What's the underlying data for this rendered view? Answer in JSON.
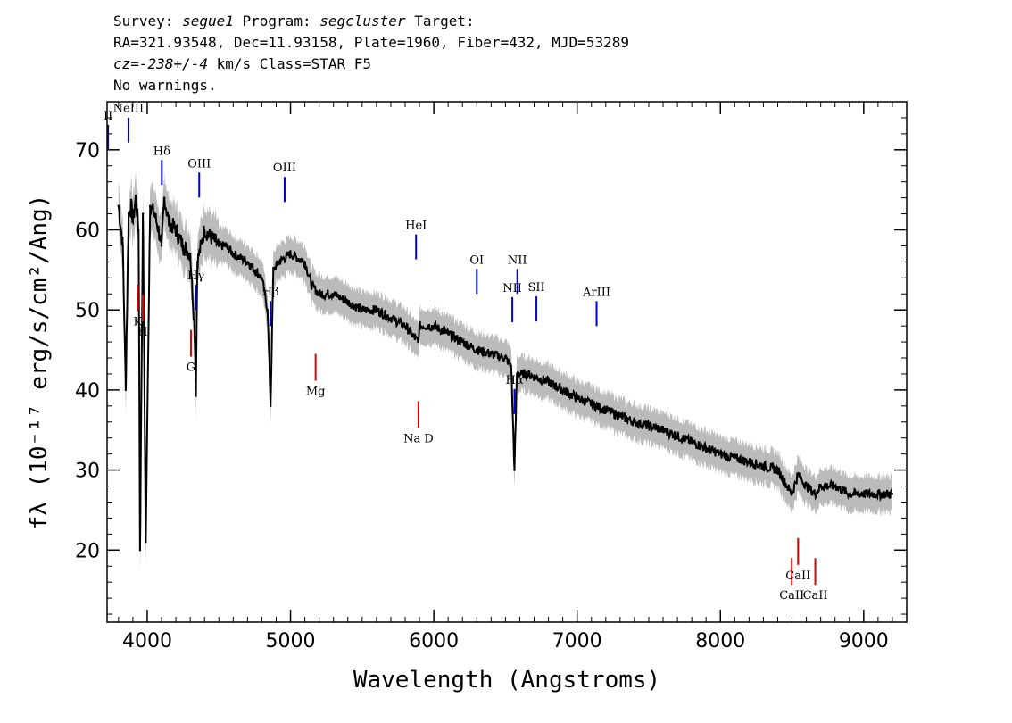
{
  "header": {
    "survey_label": "Survey:",
    "survey": "segue1",
    "program_label": "Program:",
    "program": "segcluster",
    "target_label": "Target:",
    "line2": "RA=321.93548, Dec=11.93158, Plate=1960, Fiber=432, MJD=53289",
    "cz_prefix": "cz=",
    "cz_value": "-238+/-4",
    "cz_suffix": " km/s Class=STAR F5",
    "warnings": "No warnings."
  },
  "chart_data": {
    "type": "line",
    "xlabel": "Wavelength (Angstroms)",
    "ylabel": "fλ (10⁻¹⁷ erg/s/cm²/Ang)",
    "xlim": [
      3720,
      9300
    ],
    "ylim": [
      11,
      76
    ],
    "x_ticks": [
      4000,
      5000,
      6000,
      7000,
      8000,
      9000
    ],
    "y_ticks": [
      20,
      30,
      40,
      50,
      60,
      70
    ],
    "colors": {
      "spectrum": "#000000",
      "error": "#bbbbbb",
      "emission": "#0000cc",
      "absorption": "#dd0000"
    },
    "series": [
      {
        "name": "flux",
        "x": [
          3800,
          3830,
          3850,
          3870,
          3890,
          3900,
          3920,
          3940,
          3950,
          3970,
          3990,
          4020,
          4050,
          4080,
          4100,
          4120,
          4150,
          4200,
          4250,
          4300,
          4330,
          4340,
          4350,
          4400,
          4450,
          4500,
          4550,
          4600,
          4700,
          4800,
          4840,
          4861,
          4880,
          4920,
          5000,
          5100,
          5150,
          5200,
          5300,
          5400,
          5500,
          5600,
          5700,
          5800,
          5890,
          5900,
          6000,
          6100,
          6200,
          6300,
          6400,
          6500,
          6540,
          6563,
          6580,
          6650,
          6800,
          7000,
          7200,
          7400,
          7600,
          7800,
          8000,
          8200,
          8400,
          8498,
          8542,
          8600,
          8662,
          8700,
          8800,
          8900,
          9000,
          9100,
          9200
        ],
        "y": [
          63,
          58,
          40,
          62,
          63,
          61,
          64,
          60,
          20,
          62,
          21,
          63,
          62,
          60,
          58,
          64,
          61,
          60,
          58,
          57,
          48,
          40,
          56,
          60,
          59,
          58,
          58,
          57,
          56,
          54,
          50,
          38,
          55,
          56,
          57,
          56,
          53,
          52,
          52,
          51,
          50,
          50,
          49,
          48,
          46,
          48,
          48,
          47,
          46,
          45,
          44.5,
          44,
          43,
          30,
          42,
          42,
          41,
          39,
          37.5,
          36,
          35,
          33.5,
          32,
          31,
          30,
          27,
          29.5,
          28,
          27,
          28,
          28,
          27,
          27,
          27,
          27
        ]
      }
    ],
    "emission_lines": [
      {
        "label": "II",
        "x": 3727
      },
      {
        "label": "NeIII",
        "x": 3869
      },
      {
        "label": "Hδ",
        "x": 4102
      },
      {
        "label": "Hγ",
        "x": 4340
      },
      {
        "label": "OIII",
        "x": 4363
      },
      {
        "label": "Hβ",
        "x": 4861
      },
      {
        "label": "OIII",
        "x": 4959
      },
      {
        "label": "HeI",
        "x": 5876
      },
      {
        "label": "OI",
        "x": 6300
      },
      {
        "label": "NII",
        "x": 6548
      },
      {
        "label": "Hα",
        "x": 6563
      },
      {
        "label": "NII",
        "x": 6583
      },
      {
        "label": "SII",
        "x": 6716
      },
      {
        "label": "ArIII",
        "x": 7136
      }
    ],
    "absorption_lines": [
      {
        "label": "K",
        "x": 3934
      },
      {
        "label": "H",
        "x": 3969
      },
      {
        "label": "G",
        "x": 4305
      },
      {
        "label": "Mg",
        "x": 5175
      },
      {
        "label": "Na D",
        "x": 5893
      },
      {
        "label": "CaII",
        "x": 8498
      },
      {
        "label": "CaII",
        "x": 8542
      },
      {
        "label": "CaII",
        "x": 8662
      }
    ]
  }
}
